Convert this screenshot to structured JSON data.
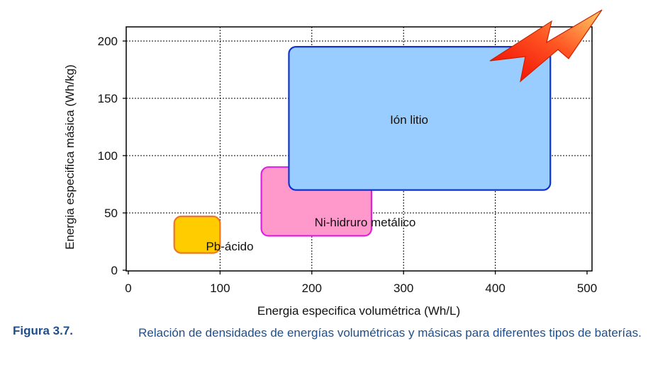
{
  "chart_data": {
    "type": "area",
    "xlabel": "Energia especifica volumétrica (Wh/L)",
    "ylabel": "Energia especifica másica (Wh/kg)",
    "xlim": [
      0,
      500
    ],
    "ylim": [
      0,
      200
    ],
    "xticks": [
      "0",
      "100",
      "200",
      "300",
      "400",
      "500"
    ],
    "yticks": [
      "0",
      "50",
      "100",
      "150",
      "200"
    ],
    "grid": true,
    "regions": [
      {
        "name": "Pb-ácido",
        "x": [
          50,
          100
        ],
        "y": [
          15,
          47
        ],
        "fill": "#ffcc00",
        "stroke": "#ee7722"
      },
      {
        "name": "Ni-hidruro metálico",
        "x": [
          145,
          265
        ],
        "y": [
          30,
          90
        ],
        "fill": "#ff99cc",
        "stroke": "#dd22dd"
      },
      {
        "name": "Ión litio",
        "x": [
          175,
          460
        ],
        "y": [
          70,
          195
        ],
        "fill": "#99ccff",
        "stroke": "#1133cc"
      }
    ]
  },
  "caption": {
    "figure": "Figura 3.7.",
    "text": "Relación de densidades de energías volumétricas y másicas para diferentes tipos de baterías."
  },
  "colors": {
    "caption": "#1f4e8a",
    "bolt_start": "#ee0000",
    "bolt_end": "#ffcc66"
  },
  "icons": {
    "lightning": "lightning-bolt-icon"
  }
}
